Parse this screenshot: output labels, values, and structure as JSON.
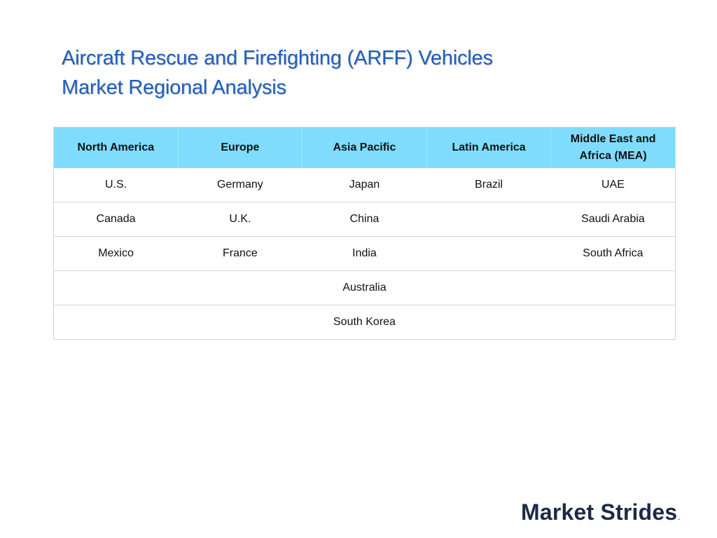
{
  "title": {
    "line1": "Aircraft Rescue and Firefighting (ARFF) Vehicles",
    "line2": "Market Regional Analysis"
  },
  "table": {
    "headers": [
      "North America",
      "Europe",
      "Asia Pacific",
      "Latin America",
      "Middle East and Africa (MEA)"
    ],
    "rows": [
      [
        "U.S.",
        "Germany",
        "Japan",
        "Brazil",
        "UAE"
      ],
      [
        "Canada",
        "U.K.",
        "China",
        "",
        "Saudi Arabia"
      ],
      [
        "Mexico",
        "France",
        "India",
        "",
        "South Africa"
      ],
      [
        "",
        "",
        "Australia",
        "",
        ""
      ],
      [
        "",
        "",
        "South Korea",
        "",
        ""
      ]
    ]
  },
  "logo": {
    "text": "Market Strides",
    "mark": "."
  },
  "colors": {
    "title": "#1f5fbf",
    "header_bg": "#7fdcfc",
    "logo": "#1d2a45"
  }
}
